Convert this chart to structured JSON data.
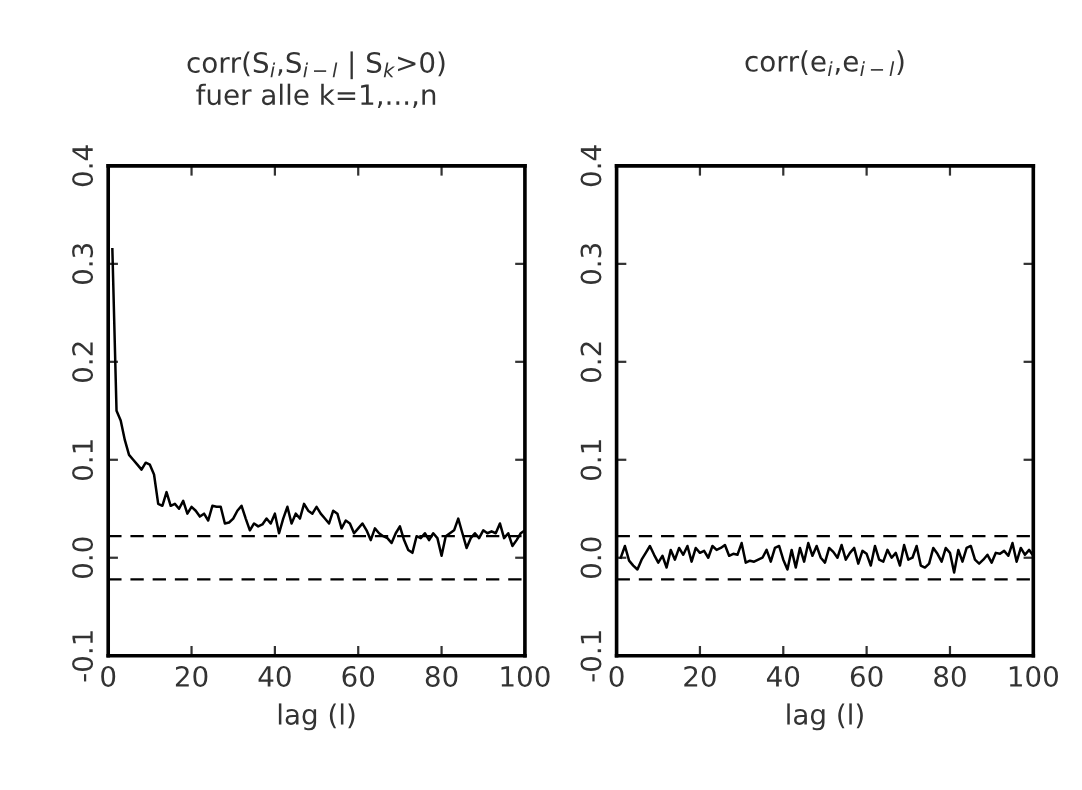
{
  "chart_data": [
    {
      "type": "line",
      "title": "corr(S$_{i}$,S$_{i−l}$ | S$_{k}$>0)\nfuer alle k=1,...,n",
      "xlabel": "lag (l)",
      "xlim": [
        0,
        100
      ],
      "xticks": [
        0,
        20,
        40,
        60,
        80,
        100
      ],
      "ylim": [
        -0.1,
        0.4
      ],
      "yticks": [
        -0.1,
        {
          "value": 0,
          "label": "0.0"
        },
        0.1,
        0.2,
        0.3,
        0.4
      ],
      "grid": false,
      "line_style": "solid",
      "ref_lines": [
        {
          "axis": "y",
          "value": 0.022,
          "line_style": "dashed"
        },
        {
          "axis": "y",
          "value": -0.022,
          "line_style": "dashed"
        }
      ],
      "series": [
        {
          "color": "#000000",
          "x": [
            1,
            2,
            3,
            4,
            5,
            6,
            7,
            8,
            9,
            10,
            11,
            12,
            13,
            14,
            15,
            16,
            17,
            18,
            19,
            20,
            21,
            22,
            23,
            24,
            25,
            26,
            27,
            28,
            29,
            30,
            31,
            32,
            33,
            34,
            35,
            36,
            37,
            38,
            39,
            40,
            41,
            42,
            43,
            44,
            45,
            46,
            47,
            48,
            49,
            50,
            51,
            52,
            53,
            54,
            55,
            56,
            57,
            58,
            59,
            60,
            61,
            62,
            63,
            64,
            65,
            66,
            67,
            68,
            69,
            70,
            71,
            72,
            73,
            74,
            75,
            76,
            77,
            78,
            79,
            80,
            81,
            82,
            83,
            84,
            85,
            86,
            87,
            88,
            89,
            90,
            91,
            92,
            93,
            94,
            95,
            96,
            97,
            98,
            99,
            100
          ],
          "values": [
            0.315,
            0.15,
            0.14,
            0.12,
            0.105,
            0.1,
            0.095,
            0.09,
            0.097,
            0.095,
            0.085,
            0.055,
            0.053,
            0.067,
            0.053,
            0.055,
            0.05,
            0.058,
            0.045,
            0.052,
            0.048,
            0.042,
            0.045,
            0.038,
            0.053,
            0.052,
            0.052,
            0.035,
            0.036,
            0.04,
            0.048,
            0.053,
            0.04,
            0.028,
            0.035,
            0.032,
            0.034,
            0.04,
            0.035,
            0.045,
            0.025,
            0.04,
            0.052,
            0.035,
            0.045,
            0.04,
            0.055,
            0.048,
            0.045,
            0.052,
            0.045,
            0.04,
            0.035,
            0.048,
            0.045,
            0.03,
            0.038,
            0.035,
            0.025,
            0.03,
            0.035,
            0.028,
            0.018,
            0.03,
            0.025,
            0.022,
            0.02,
            0.015,
            0.025,
            0.032,
            0.018,
            0.008,
            0.005,
            0.022,
            0.02,
            0.025,
            0.018,
            0.025,
            0.02,
            0.002,
            0.022,
            0.025,
            0.028,
            0.04,
            0.025,
            0.01,
            0.02,
            0.025,
            0.02,
            0.028,
            0.025,
            0.027,
            0.025,
            0.035,
            0.02,
            0.025,
            0.012,
            0.018,
            0.025,
            0.028
          ]
        }
      ]
    },
    {
      "type": "line",
      "title": "corr(e$_{i}$,e$_{i−l}$)",
      "xlabel": "lag (l)",
      "xlim": [
        0,
        100
      ],
      "xticks": [
        0,
        20,
        40,
        60,
        80,
        100
      ],
      "ylim": [
        -0.1,
        0.4
      ],
      "yticks": [
        -0.1,
        {
          "value": 0,
          "label": "0.0"
        },
        0.1,
        0.2,
        0.3,
        0.4
      ],
      "grid": false,
      "line_style": "solid",
      "ref_lines": [
        {
          "axis": "y",
          "value": 0.022,
          "line_style": "dashed"
        },
        {
          "axis": "y",
          "value": -0.022,
          "line_style": "dashed"
        }
      ],
      "series": [
        {
          "color": "#000000",
          "x": [
            1,
            2,
            3,
            4,
            5,
            6,
            7,
            8,
            9,
            10,
            11,
            12,
            13,
            14,
            15,
            16,
            17,
            18,
            19,
            20,
            21,
            22,
            23,
            24,
            25,
            26,
            27,
            28,
            29,
            30,
            31,
            32,
            33,
            34,
            35,
            36,
            37,
            38,
            39,
            40,
            41,
            42,
            43,
            44,
            45,
            46,
            47,
            48,
            49,
            50,
            51,
            52,
            53,
            54,
            55,
            56,
            57,
            58,
            59,
            60,
            61,
            62,
            63,
            64,
            65,
            66,
            67,
            68,
            69,
            70,
            71,
            72,
            73,
            74,
            75,
            76,
            77,
            78,
            79,
            80,
            81,
            82,
            83,
            84,
            85,
            86,
            87,
            88,
            89,
            90,
            91,
            92,
            93,
            94,
            95,
            96,
            97,
            98,
            99,
            100
          ],
          "values": [
            0.0,
            0.012,
            -0.003,
            -0.008,
            -0.012,
            -0.002,
            0.005,
            0.012,
            0.003,
            -0.005,
            0.002,
            -0.01,
            0.008,
            -0.002,
            0.01,
            0.003,
            0.012,
            -0.004,
            0.01,
            0.005,
            0.007,
            0.0,
            0.012,
            0.008,
            0.01,
            0.013,
            0.002,
            0.004,
            0.003,
            0.015,
            -0.005,
            -0.003,
            -0.004,
            -0.002,
            0.0,
            0.008,
            -0.004,
            0.01,
            0.012,
            -0.002,
            -0.012,
            0.008,
            -0.01,
            0.01,
            -0.004,
            0.015,
            0.002,
            0.012,
            0.0,
            -0.005,
            0.01,
            0.006,
            0.0,
            0.013,
            -0.002,
            0.005,
            0.01,
            -0.006,
            0.007,
            0.004,
            -0.008,
            0.012,
            -0.002,
            -0.004,
            0.008,
            0.0,
            0.005,
            -0.008,
            0.013,
            -0.002,
            0.0,
            0.012,
            -0.008,
            -0.01,
            -0.006,
            0.01,
            0.004,
            -0.004,
            0.01,
            0.005,
            -0.015,
            0.008,
            -0.004,
            0.01,
            0.012,
            -0.002,
            -0.006,
            -0.002,
            0.003,
            -0.005,
            0.005,
            0.004,
            0.007,
            0.002,
            0.015,
            -0.004,
            0.01,
            0.003,
            0.008,
            0.002
          ]
        }
      ]
    }
  ]
}
